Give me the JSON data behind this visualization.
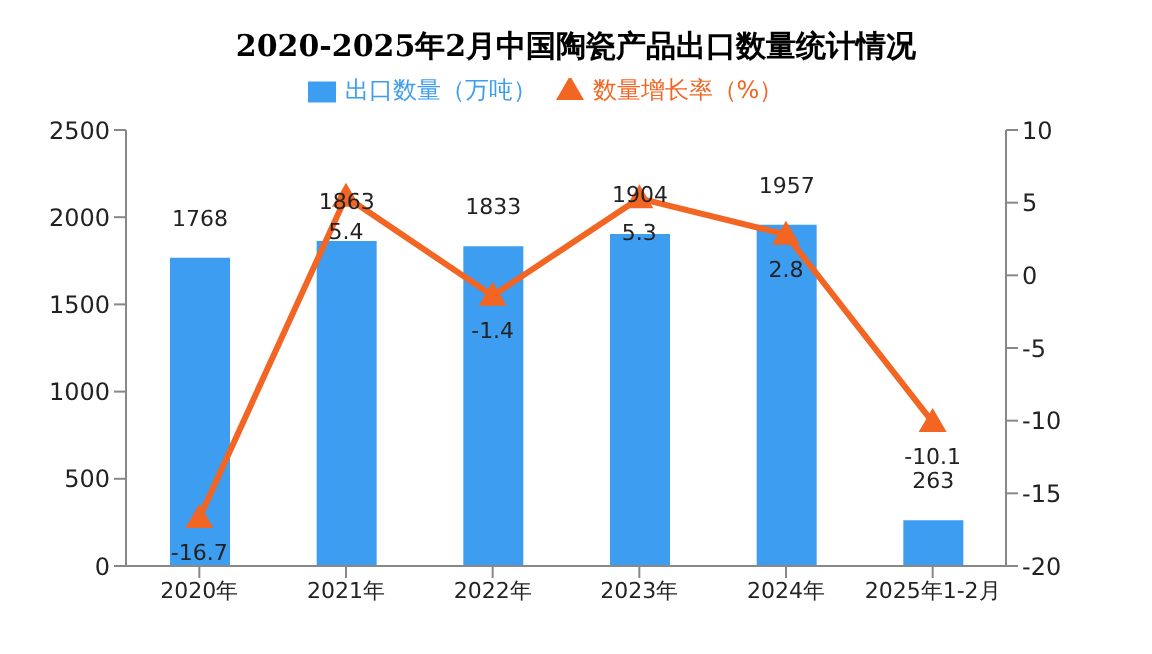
{
  "chart_data": {
    "type": "bar",
    "title": "2020-2025年2月中国陶瓷产品出口数量统计情况",
    "categories": [
      "2020年",
      "2021年",
      "2022年",
      "2023年",
      "2024年",
      "2025年1-2月"
    ],
    "series": [
      {
        "name": "出口数量（万吨）",
        "color": "#3d9df0",
        "values": [
          1768,
          1863,
          1833,
          1904,
          1957,
          263
        ]
      },
      {
        "name": "数量增长率（%）",
        "type": "line",
        "axis": "y2",
        "color": "#f26522",
        "marker": "triangle",
        "values": [
          -16.7,
          5.4,
          -1.4,
          5.3,
          2.8,
          -10.1
        ]
      }
    ],
    "ylim": [
      0,
      2500
    ],
    "yticks": [
      0,
      500,
      1000,
      1500,
      2000,
      2500
    ],
    "y2lim": [
      -20,
      10
    ],
    "y2ticks": [
      -20,
      -15,
      -10,
      -5,
      0,
      5,
      10
    ],
    "data_labels": true,
    "legend": "top",
    "grid": false
  }
}
